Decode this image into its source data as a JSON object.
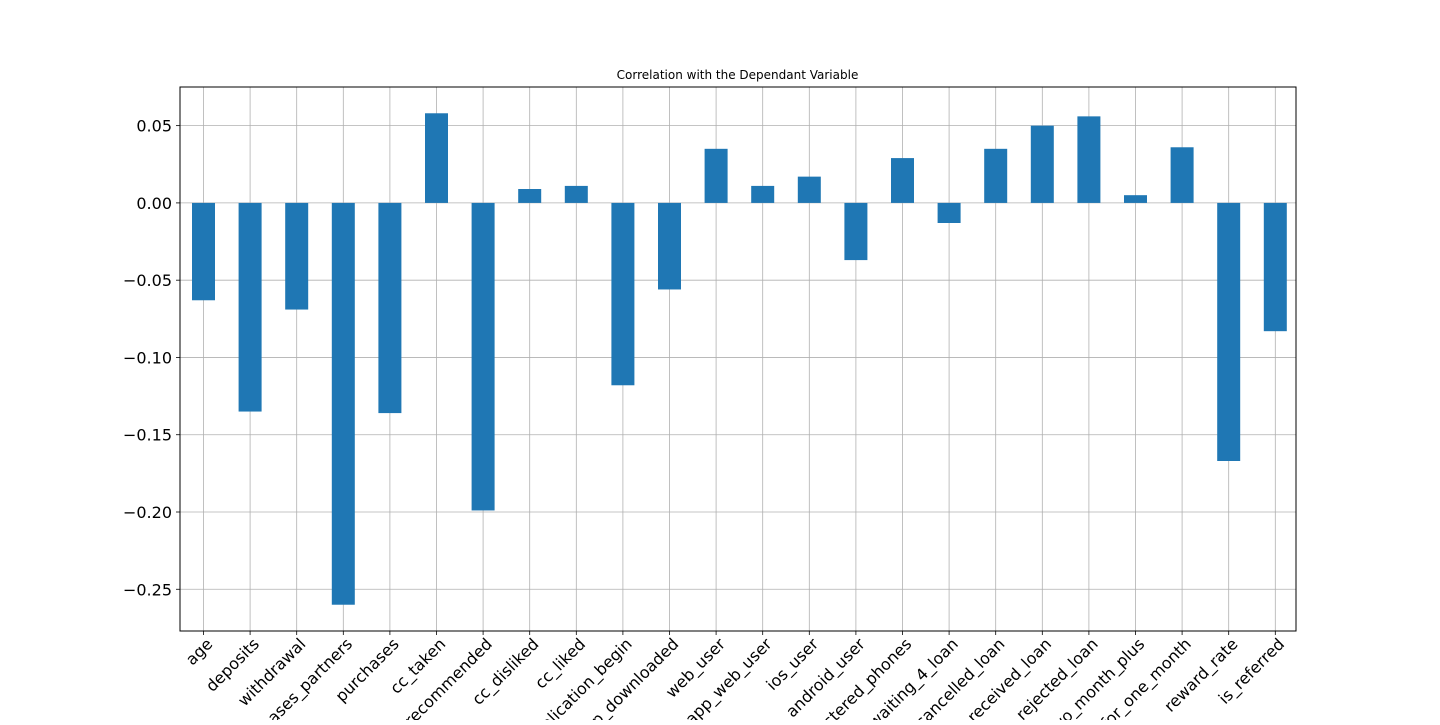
{
  "chart_data": {
    "type": "bar",
    "title": "Correlation with the Dependant Variable",
    "xlabel": "",
    "ylabel": "",
    "grid": true,
    "bar_color": "#1f77b4",
    "ylim": [
      -0.277,
      0.075
    ],
    "yticks": [
      0.05,
      0.0,
      -0.05,
      -0.1,
      -0.15,
      -0.2,
      -0.25
    ],
    "ytick_labels": [
      "0.05",
      "0.00",
      "−0.05",
      "−0.10",
      "−0.15",
      "−0.20",
      "−0.25"
    ],
    "x_tick_labels": [
      "age",
      "deposits",
      "withdrawal",
      "chases_partners",
      "purchases",
      "cc_taken",
      "recommended",
      "cc_disliked",
      "cc_liked",
      "plication_begin",
      "p_downloaded",
      "web_user",
      "app_web_user",
      "ios_user",
      "android_user",
      "istered_phones",
      "waiting_4_loan",
      "cancelled_loan",
      "received_loan",
      "rejected_loan",
      "wo_month_plus",
      "for_one_month",
      "reward_rate",
      "is_referred"
    ],
    "categories": [
      "age",
      "deposits",
      "withdrawal",
      "purchases_partners",
      "purchases",
      "cc_taken",
      "cc_recommended",
      "cc_disliked",
      "cc_liked",
      "cc_application_begin",
      "app_downloaded",
      "web_user",
      "app_web_user",
      "ios_user",
      "android_user",
      "registered_phones",
      "waiting_4_loan",
      "cancelled_loan",
      "received_loan",
      "rejected_loan",
      "left_for_two_month_plus",
      "left_for_one_month",
      "reward_rate",
      "is_referred"
    ],
    "values": [
      -0.063,
      -0.135,
      -0.069,
      -0.26,
      -0.136,
      0.058,
      -0.199,
      0.009,
      0.011,
      -0.118,
      -0.056,
      0.035,
      0.011,
      0.017,
      -0.037,
      0.029,
      -0.013,
      0.035,
      0.05,
      0.056,
      0.005,
      0.036,
      -0.167,
      -0.083
    ]
  }
}
